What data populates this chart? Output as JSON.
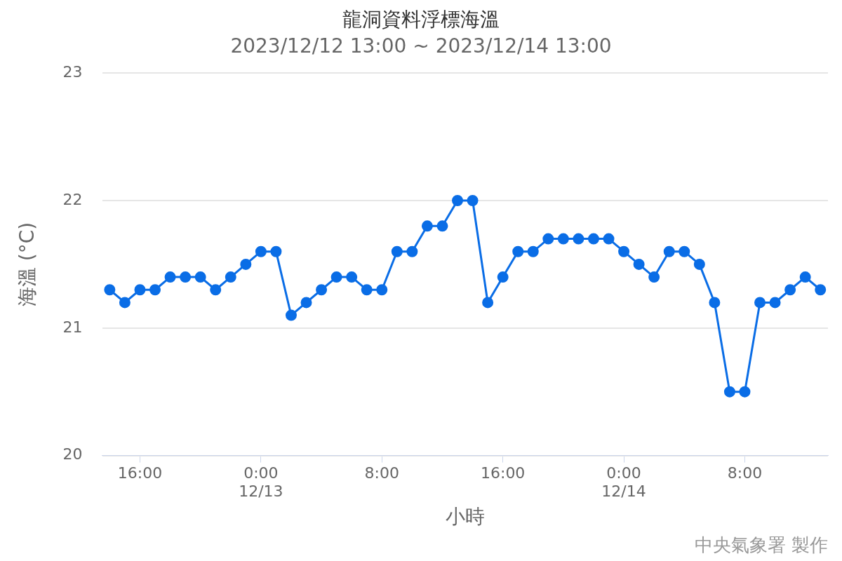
{
  "chart_data": {
    "type": "line",
    "title": "龍洞資料浮標海溫",
    "subtitle": "2023/12/12 13:00 ~ 2023/12/14 13:00",
    "xlabel": "小時",
    "ylabel": "海溫 (°C)",
    "annotations": [
      "中央氣象署 製作"
    ],
    "x": [
      "2023-12-12T14:00",
      "2023-12-12T15:00",
      "2023-12-12T16:00",
      "2023-12-12T17:00",
      "2023-12-12T18:00",
      "2023-12-12T19:00",
      "2023-12-12T20:00",
      "2023-12-12T21:00",
      "2023-12-12T22:00",
      "2023-12-12T23:00",
      "2023-12-13T00:00",
      "2023-12-13T01:00",
      "2023-12-13T02:00",
      "2023-12-13T03:00",
      "2023-12-13T04:00",
      "2023-12-13T05:00",
      "2023-12-13T06:00",
      "2023-12-13T07:00",
      "2023-12-13T08:00",
      "2023-12-13T09:00",
      "2023-12-13T10:00",
      "2023-12-13T11:00",
      "2023-12-13T12:00",
      "2023-12-13T13:00",
      "2023-12-13T14:00",
      "2023-12-13T15:00",
      "2023-12-13T16:00",
      "2023-12-13T17:00",
      "2023-12-13T18:00",
      "2023-12-13T19:00",
      "2023-12-13T20:00",
      "2023-12-13T21:00",
      "2023-12-13T22:00",
      "2023-12-13T23:00",
      "2023-12-14T00:00",
      "2023-12-14T01:00",
      "2023-12-14T02:00",
      "2023-12-14T03:00",
      "2023-12-14T04:00",
      "2023-12-14T05:00",
      "2023-12-14T06:00",
      "2023-12-14T07:00",
      "2023-12-14T08:00",
      "2023-12-14T09:00",
      "2023-12-14T10:00",
      "2023-12-14T11:00",
      "2023-12-14T12:00",
      "2023-12-14T13:00"
    ],
    "series": [
      {
        "color": "#0a6de6",
        "values": [
          21.3,
          21.2,
          21.3,
          21.3,
          21.4,
          21.4,
          21.4,
          21.3,
          21.4,
          21.5,
          21.6,
          21.6,
          21.1,
          21.2,
          21.3,
          21.4,
          21.4,
          21.3,
          21.3,
          21.6,
          21.6,
          21.8,
          21.8,
          22.0,
          22.0,
          21.2,
          21.4,
          21.6,
          21.6,
          21.7,
          21.7,
          21.7,
          21.7,
          21.7,
          21.6,
          21.5,
          21.4,
          21.6,
          21.6,
          21.5,
          21.2,
          20.5,
          20.5,
          21.2,
          21.2,
          21.3,
          21.4,
          21.3
        ]
      }
    ],
    "xlim": [
      "2023-12-12T13:30",
      "2023-12-14T13:30"
    ],
    "xticks": [
      {
        "value": "2023-12-12T16:00",
        "label": "16:00"
      },
      {
        "value": "2023-12-13T00:00",
        "label": "0:00\n12/13"
      },
      {
        "value": "2023-12-13T08:00",
        "label": "8:00"
      },
      {
        "value": "2023-12-13T16:00",
        "label": "16:00"
      },
      {
        "value": "2023-12-14T00:00",
        "label": "0:00\n12/14"
      },
      {
        "value": "2023-12-14T08:00",
        "label": "8:00"
      }
    ],
    "ylim": [
      20,
      23
    ],
    "yticks": [
      20,
      21,
      22,
      23
    ],
    "grid": "y",
    "legend": false,
    "marker": "circle",
    "line_style": "solid"
  }
}
